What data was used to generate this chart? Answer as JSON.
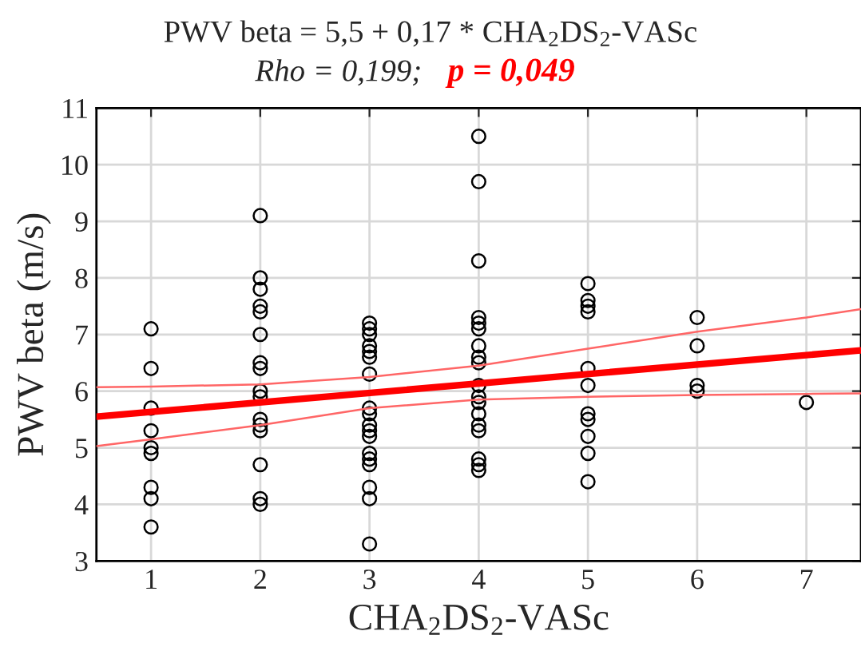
{
  "chart_data": {
    "type": "scatter",
    "title": "PWV beta = 5,5 + 0,17 * CHA$_{2}$DS$_{2}$-VASc",
    "subtitle": "Rho = 0,199;",
    "annotations": [
      "p = 0,049"
    ],
    "xlabel": "CHA$_{2}$DS$_{2}$-VASc",
    "ylabel": "PWV beta (m/s)",
    "xlim": [
      0.5,
      7.5
    ],
    "xticks": [
      1,
      2,
      3,
      4,
      5,
      6,
      7
    ],
    "ylim": [
      3,
      11
    ],
    "yticks": [
      3,
      4,
      5,
      6,
      7,
      8,
      9,
      10,
      11
    ],
    "grid": true,
    "series": [
      {
        "marker": "circle",
        "color": "#000000",
        "x": [
          1,
          1,
          1,
          1,
          1,
          1,
          1,
          1,
          1,
          2,
          2,
          2,
          2,
          2,
          2,
          2,
          2,
          2,
          2,
          2,
          2,
          2,
          2,
          2,
          2,
          3,
          3,
          3,
          3,
          3,
          3,
          3,
          3,
          3,
          3,
          3,
          3,
          3,
          3,
          3,
          3,
          3,
          3,
          4,
          4,
          4,
          4,
          4,
          4,
          4,
          4,
          4,
          4,
          4,
          4,
          4,
          4,
          4,
          4,
          4,
          4,
          5,
          5,
          5,
          5,
          5,
          5,
          5,
          5,
          5,
          5,
          5,
          6,
          6,
          6,
          6,
          7
        ],
        "values": [
          7.1,
          6.4,
          5.7,
          5.3,
          5.0,
          4.9,
          4.3,
          4.1,
          3.6,
          9.1,
          8.0,
          7.8,
          7.5,
          7.4,
          7.0,
          6.5,
          6.4,
          6.0,
          5.9,
          5.5,
          5.4,
          5.3,
          4.7,
          4.1,
          4.0,
          7.2,
          7.1,
          7.0,
          6.8,
          6.7,
          6.6,
          6.3,
          5.7,
          5.6,
          5.4,
          5.3,
          5.2,
          4.9,
          4.8,
          4.7,
          4.3,
          4.1,
          3.3,
          10.5,
          9.7,
          8.3,
          7.3,
          7.2,
          7.1,
          6.8,
          6.6,
          6.5,
          6.1,
          5.9,
          5.8,
          5.6,
          5.4,
          5.3,
          4.8,
          4.7,
          4.6,
          7.9,
          7.6,
          7.5,
          7.4,
          6.4,
          6.1,
          5.6,
          5.5,
          5.2,
          4.9,
          4.4,
          7.3,
          6.8,
          6.1,
          6.0,
          5.8
        ]
      },
      {
        "type": "line",
        "color": "#ff0000",
        "x": [
          0.5,
          7.5
        ],
        "values": [
          5.55,
          6.72
        ],
        "line_style": "solid",
        "marker": "none"
      },
      {
        "type": "line",
        "color": "#ff6666",
        "x": [
          0.5,
          1,
          2,
          3,
          4,
          5,
          6,
          7,
          7.5
        ],
        "values": [
          6.07,
          6.08,
          6.12,
          6.25,
          6.45,
          6.75,
          7.05,
          7.3,
          7.45
        ],
        "line_style": "solid",
        "marker": "none"
      },
      {
        "type": "line",
        "color": "#ff6666",
        "x": [
          0.5,
          1,
          2,
          3,
          4,
          5,
          6,
          7,
          7.5
        ],
        "values": [
          5.03,
          5.15,
          5.4,
          5.7,
          5.85,
          5.9,
          5.93,
          5.95,
          5.96
        ],
        "line_style": "solid",
        "marker": "none"
      }
    ]
  }
}
